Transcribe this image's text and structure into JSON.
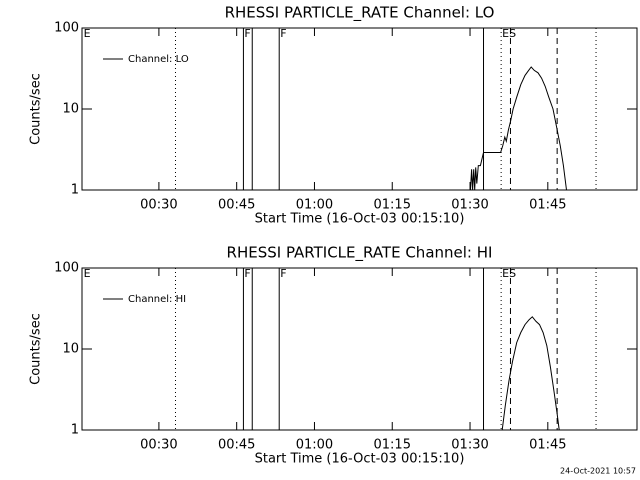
{
  "chart_data": [
    {
      "type": "line",
      "title": "RHESSI PARTICLE_RATE Channel: LO",
      "xlabel": "Start Time (16-Oct-03 00:15:10)",
      "ylabel": "Counts/sec",
      "log_y": true,
      "xlim": [
        15.17,
        122.2
      ],
      "xticks": [
        {
          "value": 30,
          "label": "00:30"
        },
        {
          "value": 45,
          "label": "00:45"
        },
        {
          "value": 60,
          "label": "01:00"
        },
        {
          "value": 75,
          "label": "01:15"
        },
        {
          "value": 90,
          "label": "01:30"
        },
        {
          "value": 105,
          "label": "01:45"
        }
      ],
      "ylim": [
        1,
        100
      ],
      "yticks": [
        1,
        10,
        100
      ],
      "series": [
        {
          "name": "Channel: LO",
          "color": "#000000",
          "x": [
            90.1,
            90.3,
            90.5,
            90.7,
            90.9,
            91.1,
            91.3,
            91.6,
            92.0,
            92.6,
            95.9,
            96.3,
            96.7,
            97.0,
            97.4,
            97.8,
            98.3,
            99.0,
            99.8,
            100.6,
            101.3,
            101.8,
            102.4,
            103.1,
            103.8,
            104.5,
            105.2,
            106.0,
            106.7,
            107.4,
            108.0,
            108.6
          ],
          "values": [
            1,
            1.8,
            1,
            1.8,
            1,
            1.9,
            1.2,
            2.0,
            2.0,
            2.9,
            2.9,
            3.5,
            4.5,
            4.0,
            5.5,
            7,
            10,
            14,
            20,
            26,
            30,
            33,
            30,
            28,
            24,
            19,
            14,
            10,
            6,
            3.5,
            2,
            1
          ]
        }
      ],
      "vlines": [
        {
          "x": 33.2,
          "style": "dotted"
        },
        {
          "x": 46.3,
          "style": "solid"
        },
        {
          "x": 48.0,
          "style": "solid"
        },
        {
          "x": 53.2,
          "style": "solid"
        },
        {
          "x": 92.6,
          "style": "solid"
        },
        {
          "x": 96.0,
          "style": "dotted"
        },
        {
          "x": 97.8,
          "style": "dashed"
        },
        {
          "x": 106.8,
          "style": "dashed"
        },
        {
          "x": 114.3,
          "style": "dotted"
        }
      ],
      "annotations": [
        {
          "text": "E",
          "x": 15.3
        },
        {
          "text": "F",
          "x": 46.3
        },
        {
          "text": "F",
          "x": 53.2
        },
        {
          "text": "ES",
          "x": 96.0
        }
      ]
    },
    {
      "type": "line",
      "title": "RHESSI PARTICLE_RATE Channel: HI",
      "xlabel": "Start Time (16-Oct-03 00:15:10)",
      "ylabel": "Counts/sec",
      "log_y": true,
      "xlim": [
        15.17,
        122.2
      ],
      "xticks": [
        {
          "value": 30,
          "label": "00:30"
        },
        {
          "value": 45,
          "label": "00:45"
        },
        {
          "value": 60,
          "label": "01:00"
        },
        {
          "value": 75,
          "label": "01:15"
        },
        {
          "value": 90,
          "label": "01:30"
        },
        {
          "value": 105,
          "label": "01:45"
        }
      ],
      "ylim": [
        1,
        100
      ],
      "yticks": [
        1,
        10,
        100
      ],
      "series": [
        {
          "name": "Channel: HI",
          "color": "#000000",
          "x": [
            96.2,
            96.8,
            97.5,
            98.2,
            99.0,
            99.8,
            100.6,
            101.4,
            102.0,
            102.7,
            103.4,
            104.1,
            104.8,
            105.5,
            106.2,
            106.8,
            107.2
          ],
          "values": [
            1,
            2,
            4,
            7,
            12,
            16,
            20,
            23,
            25,
            22,
            20,
            16,
            11,
            6,
            3,
            1.6,
            1
          ]
        }
      ],
      "vlines": [
        {
          "x": 33.2,
          "style": "dotted"
        },
        {
          "x": 46.3,
          "style": "solid"
        },
        {
          "x": 48.0,
          "style": "solid"
        },
        {
          "x": 53.2,
          "style": "solid"
        },
        {
          "x": 92.6,
          "style": "solid"
        },
        {
          "x": 96.0,
          "style": "dotted"
        },
        {
          "x": 97.8,
          "style": "dashed"
        },
        {
          "x": 106.8,
          "style": "dashed"
        },
        {
          "x": 114.3,
          "style": "dotted"
        }
      ],
      "annotations": [
        {
          "text": "E",
          "x": 15.3
        },
        {
          "text": "F",
          "x": 46.3
        },
        {
          "text": "F",
          "x": 53.2
        },
        {
          "text": "ES",
          "x": 96.0
        }
      ]
    }
  ],
  "footer": "24-Oct-2021 10:57"
}
